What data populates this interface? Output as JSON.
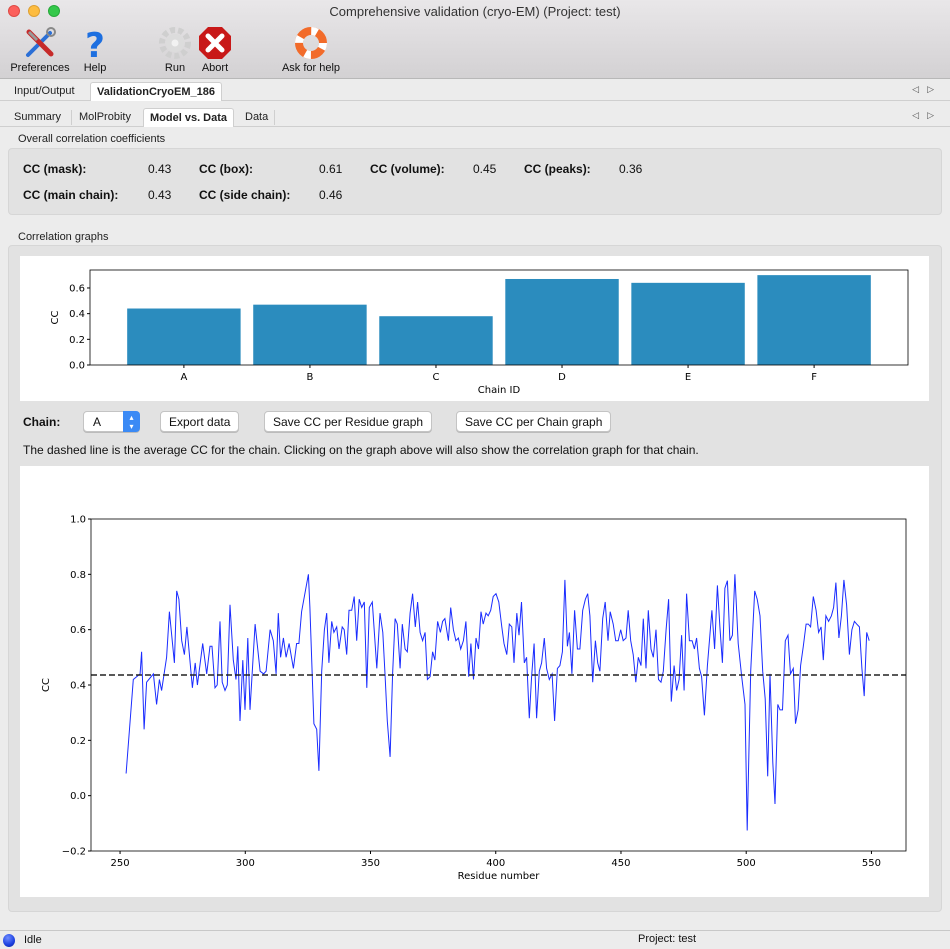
{
  "window": {
    "title": "Comprehensive validation (cryo-EM) (Project: test)"
  },
  "toolbar": {
    "preferences": "Preferences",
    "help": "Help",
    "run": "Run",
    "abort": "Abort",
    "ask_help": "Ask for help"
  },
  "tabs_outer": [
    "Input/Output",
    "ValidationCryoEM_186"
  ],
  "tabs_inner": [
    "Summary",
    "MolProbity",
    "Model vs. Data",
    "Data"
  ],
  "overall": {
    "label": "Overall correlation coefficients",
    "items": [
      {
        "label": "CC (mask):",
        "value": "0.43"
      },
      {
        "label": "CC (box):",
        "value": "0.61"
      },
      {
        "label": "CC (volume):",
        "value": "0.45"
      },
      {
        "label": "CC (peaks):",
        "value": "0.36"
      },
      {
        "label": "CC (main chain):",
        "value": "0.43"
      },
      {
        "label": "CC (side chain):",
        "value": "0.46"
      }
    ]
  },
  "graphs": {
    "label": "Correlation graphs",
    "chain_label": "Chain:",
    "chain_value": "A",
    "export": "Export data",
    "save_residue": "Save CC per Residue graph",
    "save_chain": "Save CC per Chain graph",
    "note": "The dashed line is the average CC for the chain. Clicking on the graph above will also show the correlation graph for that chain."
  },
  "status": {
    "text": "Idle",
    "project": "Project: test",
    "indicator_color": "#1a3fe0"
  },
  "chart_data": [
    {
      "type": "bar",
      "categories": [
        "A",
        "B",
        "C",
        "D",
        "E",
        "F"
      ],
      "values": [
        0.44,
        0.47,
        0.38,
        0.67,
        0.64,
        0.7
      ],
      "xlabel": "Chain ID",
      "ylabel": "CC",
      "ylim": [
        0,
        0.74
      ],
      "yticks": [
        "0.0",
        "0.2",
        "0.4",
        "0.6"
      ],
      "color": "#2b8cbe"
    },
    {
      "type": "line",
      "xlabel": "Residue number",
      "ylabel": "CC",
      "xlim": [
        238.4,
        563.8
      ],
      "ylim": [
        -0.2,
        1.0
      ],
      "xticks": [
        "250",
        "300",
        "350",
        "400",
        "450",
        "500",
        "550"
      ],
      "yticks": [
        "−0.2",
        "0.0",
        "0.2",
        "0.4",
        "0.6",
        "0.8",
        "1.0"
      ],
      "average": 0.436,
      "color": "#1a2cff",
      "x": [
        252.4,
        255.3,
        258,
        258.6,
        259.6,
        260.6,
        263.3,
        264.6,
        265.7,
        266.6,
        268.6,
        269.7,
        271.7,
        272.6,
        273.5,
        274.6,
        275.7,
        276.7,
        278.9,
        280,
        280.9,
        283,
        284.6,
        285.9,
        286.7,
        287.9,
        288.8,
        289.9,
        290.8,
        291.9,
        292.8,
        293.9,
        295.2,
        296.3,
        297,
        297.9,
        299,
        299.9,
        301,
        301.9,
        303.9,
        305.9,
        307.3,
        308.3,
        309.9,
        311.2,
        312.3,
        313.2,
        314.1,
        315.2,
        316.3,
        317.5,
        319.2,
        320.5,
        321.4,
        322.5,
        325.2,
        325.8,
        327.4,
        328.5,
        329.4,
        330.5,
        331.6,
        332.5,
        333.4,
        334.5,
        335.4,
        336.5,
        337.4,
        338.7,
        339.5,
        340.5,
        341.4,
        342.5,
        343.5,
        344.5,
        345.5,
        346.5,
        347.5,
        348.5,
        349.5,
        350.7,
        352.5,
        353.8,
        354.9,
        355.8,
        356.7,
        357.8,
        358.8,
        359.8,
        360.7,
        361.8,
        362.7,
        363.8,
        364.7,
        365.8,
        366.8,
        367.9,
        368.8,
        369.8,
        370.8,
        371.8,
        372.7,
        373.8,
        374.8,
        375.7,
        376.8,
        377.9,
        378.8,
        379.7,
        381.1,
        382,
        383.1,
        384.1,
        385.1,
        386,
        387.1,
        388.1,
        389.2,
        390.1,
        391.1,
        392.1,
        393.1,
        394.1,
        395,
        396.1,
        397,
        398,
        399,
        400.1,
        401.2,
        402.4,
        403.3,
        404.4,
        405.4,
        406.4,
        407.3,
        408.4,
        409.3,
        410.3,
        411.4,
        412.3,
        413.4,
        414.3,
        415.3,
        416.3,
        417.4,
        418.3,
        419.4,
        420.3,
        421.4,
        422.5,
        423.5,
        424.6,
        425.6,
        426.6,
        427.6,
        428.6,
        429.4,
        430.4,
        431.5,
        432.6,
        433.6,
        434.7,
        435.8,
        436.7,
        437.6,
        438.7,
        439.8,
        440.7,
        441.6,
        442.7,
        443.7,
        444.8,
        445.7,
        446.9,
        447.9,
        448.9,
        449.9,
        450.9,
        452,
        452.9,
        453.9,
        454.9,
        455.9,
        456.9,
        458,
        458.9,
        460,
        460.9,
        462,
        462.9,
        464,
        465,
        466,
        466.9,
        468,
        469,
        470.1,
        471.2,
        472.2,
        473.2,
        474.2,
        475.2,
        476.2,
        477.3,
        478.4,
        479.3,
        480.2,
        481.3,
        482.2,
        483.3,
        484.5,
        486.3,
        487.4,
        488.5,
        489.5,
        490.5,
        491.5,
        492.5,
        493.5,
        494.5,
        495.5,
        496.8,
        498.2,
        499.5,
        500.4,
        501.8,
        503.4,
        504.4,
        505.5,
        506.6,
        507.6,
        508.6,
        509.5,
        510.6,
        511.5,
        512.6,
        513.5,
        514.5,
        515.6,
        516.7,
        517.7,
        518.8,
        519.7,
        520.7,
        521.7,
        522.8,
        523.9,
        524.8,
        525.7,
        526.8,
        527.9,
        528.9,
        529.9,
        530.8,
        531.8,
        532.9,
        534,
        534.9,
        535.8,
        537,
        538,
        539,
        540.1,
        541.2,
        542.2,
        543.2,
        544.1,
        545.2,
        546.2,
        547.1,
        548.1,
        549.1
      ],
      "y": [
        0.08,
        0.42,
        0.44,
        0.52,
        0.24,
        0.41,
        0.44,
        0.33,
        0.42,
        0.38,
        0.5,
        0.665,
        0.48,
        0.74,
        0.71,
        0.56,
        0.51,
        0.61,
        0.39,
        0.48,
        0.4,
        0.55,
        0.44,
        0.54,
        0.54,
        0.39,
        0.4,
        0.63,
        0.41,
        0.38,
        0.4,
        0.69,
        0.49,
        0.42,
        0.54,
        0.27,
        0.49,
        0.31,
        0.57,
        0.31,
        0.62,
        0.45,
        0.44,
        0.45,
        0.6,
        0.56,
        0.44,
        0.66,
        0.5,
        0.57,
        0.5,
        0.55,
        0.46,
        0.55,
        0.55,
        0.665,
        0.8,
        0.68,
        0.26,
        0.24,
        0.09,
        0.45,
        0.6,
        0.66,
        0.48,
        0.63,
        0.59,
        0.61,
        0.53,
        0.61,
        0.6,
        0.51,
        0.67,
        0.67,
        0.72,
        0.56,
        0.71,
        0.68,
        0.7,
        0.39,
        0.68,
        0.7,
        0.46,
        0.66,
        0.59,
        0.44,
        0.27,
        0.14,
        0.44,
        0.64,
        0.62,
        0.46,
        0.62,
        0.53,
        0.52,
        0.66,
        0.73,
        0.61,
        0.7,
        0.59,
        0.56,
        0.59,
        0.42,
        0.43,
        0.52,
        0.49,
        0.63,
        0.59,
        0.63,
        0.64,
        0.56,
        0.68,
        0.6,
        0.56,
        0.57,
        0.53,
        0.56,
        0.63,
        0.43,
        0.55,
        0.42,
        0.57,
        0.53,
        0.665,
        0.62,
        0.66,
        0.65,
        0.67,
        0.72,
        0.73,
        0.7,
        0.61,
        0.55,
        0.51,
        0.62,
        0.61,
        0.48,
        0.66,
        0.58,
        0.7,
        0.48,
        0.5,
        0.28,
        0.43,
        0.55,
        0.28,
        0.45,
        0.48,
        0.57,
        0.46,
        0.42,
        0.44,
        0.27,
        0.46,
        0.47,
        0.52,
        0.78,
        0.54,
        0.59,
        0.44,
        0.67,
        0.53,
        0.53,
        0.67,
        0.71,
        0.73,
        0.65,
        0.41,
        0.56,
        0.48,
        0.45,
        0.64,
        0.7,
        0.56,
        0.665,
        0.62,
        0.56,
        0.56,
        0.6,
        0.56,
        0.57,
        0.67,
        0.56,
        0.51,
        0.41,
        0.5,
        0.47,
        0.64,
        0.46,
        0.67,
        0.53,
        0.5,
        0.6,
        0.42,
        0.41,
        0.45,
        0.6,
        0.71,
        0.34,
        0.47,
        0.38,
        0.42,
        0.58,
        0.38,
        0.73,
        0.56,
        0.56,
        0.53,
        0.57,
        0.46,
        0.43,
        0.29,
        0.47,
        0.67,
        0.53,
        0.76,
        0.61,
        0.48,
        0.75,
        0.777,
        0.56,
        0.58,
        0.8,
        0.55,
        0.43,
        0.33,
        -0.126,
        0.45,
        0.74,
        0.71,
        0.65,
        0.45,
        0.35,
        0.07,
        0.44,
        0.12,
        -0.03,
        0.33,
        0.31,
        0.31,
        0.56,
        0.58,
        0.44,
        0.46,
        0.26,
        0.31,
        0.47,
        0.54,
        0.62,
        0.62,
        0.61,
        0.72,
        0.67,
        0.59,
        0.61,
        0.49,
        0.65,
        0.63,
        0.65,
        0.68,
        0.77,
        0.57,
        0.65,
        0.78,
        0.69,
        0.51,
        0.6,
        0.63,
        0.62,
        0.61,
        0.46,
        0.36,
        0.59,
        0.56
      ]
    }
  ]
}
